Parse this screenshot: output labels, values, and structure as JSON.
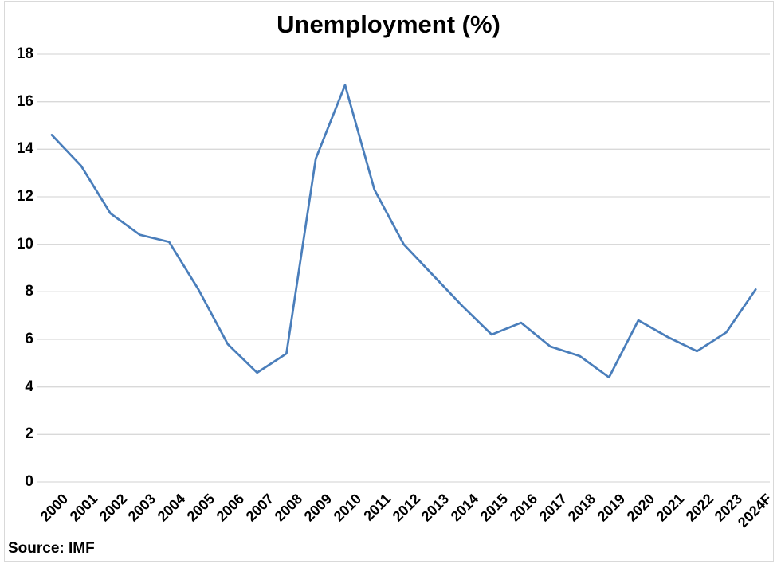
{
  "title": "Unemployment (%)",
  "source_note": "Source: IMF",
  "colors": {
    "line": "#4a7ebb",
    "gridline": "#d9d9d9",
    "frame_border": "#d9d9d9",
    "text": "#000000",
    "background": "#ffffff"
  },
  "chart_data": {
    "type": "line",
    "title": "Unemployment (%)",
    "categories": [
      "2000",
      "2001",
      "2002",
      "2003",
      "2004",
      "2005",
      "2006",
      "2007",
      "2008",
      "2009",
      "2010",
      "2011",
      "2012",
      "2013",
      "2014",
      "2015",
      "2016",
      "2017",
      "2018",
      "2019",
      "2020",
      "2021",
      "2022",
      "2023",
      "2024F"
    ],
    "values": [
      14.6,
      13.3,
      11.3,
      10.4,
      10.1,
      8.1,
      5.8,
      4.6,
      5.4,
      13.6,
      16.7,
      12.3,
      10.0,
      8.7,
      7.4,
      6.2,
      6.7,
      5.7,
      5.3,
      4.4,
      6.8,
      6.1,
      5.5,
      6.3,
      8.1
    ],
    "xlabel": "",
    "ylabel": "",
    "ylim": [
      0,
      18
    ],
    "y_tick_step": 2,
    "y_ticks": [
      "0",
      "2",
      "4",
      "6",
      "8",
      "10",
      "12",
      "14",
      "16",
      "18"
    ],
    "grid": true,
    "legend_position": "none",
    "annotations": [
      "Source: IMF"
    ]
  }
}
